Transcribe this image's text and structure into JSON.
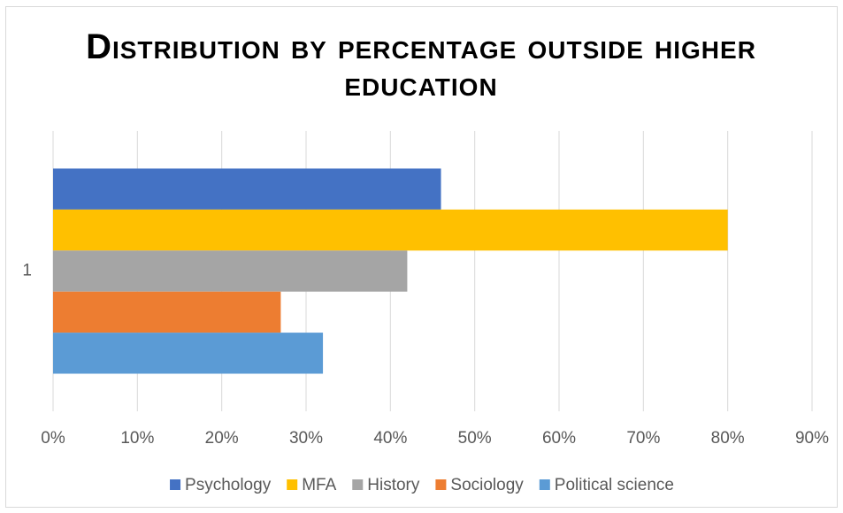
{
  "chart_data": {
    "type": "bar",
    "orientation": "horizontal",
    "title": "Distribution by percentage outside higher education",
    "categories": [
      "1"
    ],
    "series": [
      {
        "name": "Psychology",
        "color": "#4472c4",
        "values": [
          46
        ]
      },
      {
        "name": "MFA",
        "color": "#ffc000",
        "values": [
          80
        ]
      },
      {
        "name": "History",
        "color": "#a5a5a5",
        "values": [
          42
        ]
      },
      {
        "name": "Sociology",
        "color": "#ed7d31",
        "values": [
          27
        ]
      },
      {
        "name": "Political science",
        "color": "#5b9bd5",
        "values": [
          32
        ]
      }
    ],
    "xlim": [
      0,
      90
    ],
    "xticks": [
      {
        "value": 0,
        "label": "0%"
      },
      {
        "value": 10,
        "label": "10%"
      },
      {
        "value": 20,
        "label": "20%"
      },
      {
        "value": 30,
        "label": "30%"
      },
      {
        "value": 40,
        "label": "40%"
      },
      {
        "value": 50,
        "label": "50%"
      },
      {
        "value": 60,
        "label": "60%"
      },
      {
        "value": 70,
        "label": "70%"
      },
      {
        "value": 80,
        "label": "80%"
      },
      {
        "value": 90,
        "label": "90%"
      }
    ],
    "grid": true,
    "legend": "bottom"
  }
}
